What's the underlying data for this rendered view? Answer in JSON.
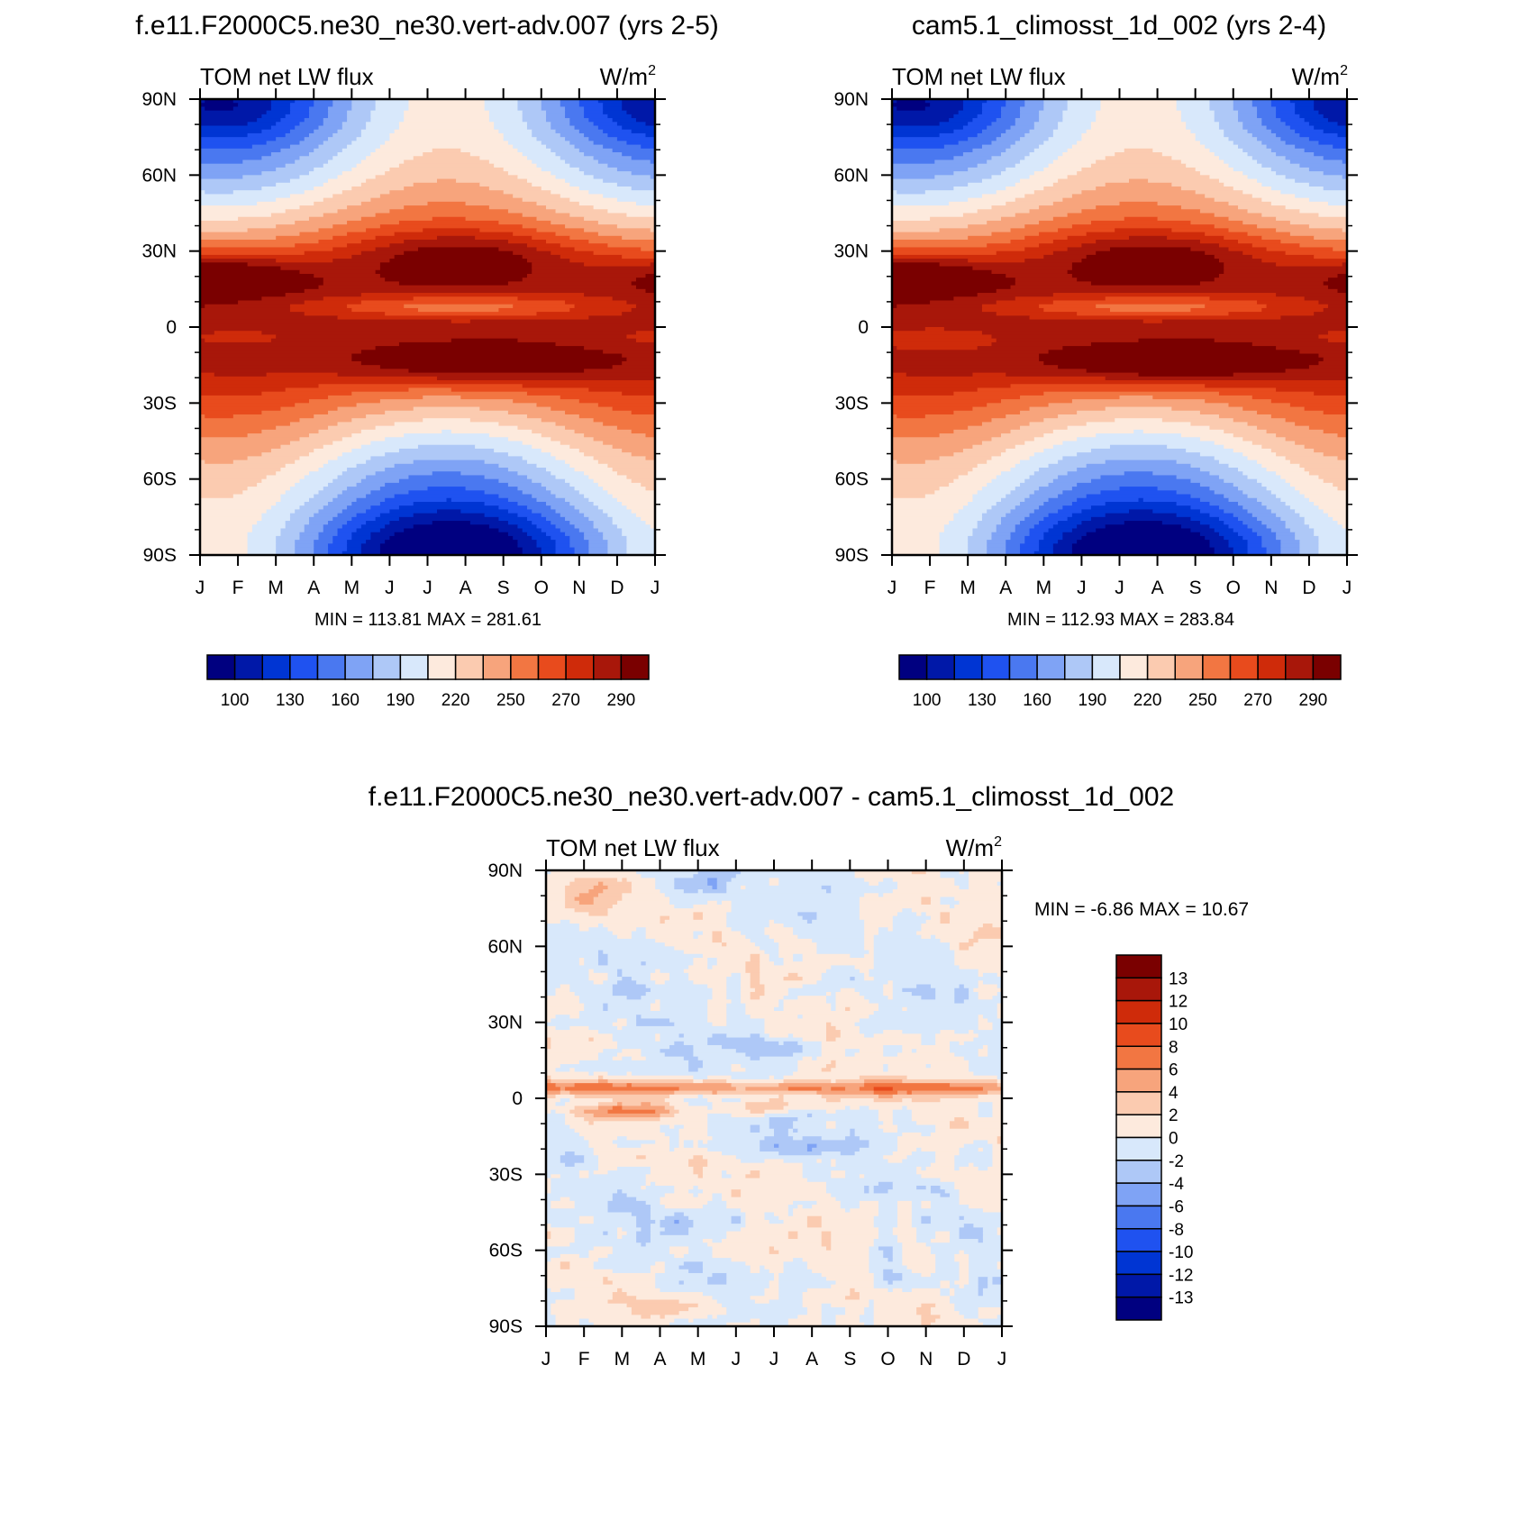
{
  "palette": {
    "absolute": [
      "#000080",
      "#0018a8",
      "#0035d3",
      "#1f52f0",
      "#4a78f0",
      "#7fa3f5",
      "#aec8f7",
      "#d8e8fb",
      "#fdeadd",
      "#fbcbb0",
      "#f7a47c",
      "#f27642",
      "#e84b1d",
      "#cf2b0a",
      "#a8170a",
      "#7a0000"
    ],
    "difference": [
      "#000080",
      "#0018a8",
      "#0035d3",
      "#1f52f0",
      "#4a78f0",
      "#7fa3f5",
      "#aec8f7",
      "#d8e8fb",
      "#fdeadd",
      "#fbcbb0",
      "#f7a47c",
      "#f27642",
      "#e84b1d",
      "#cf2b0a",
      "#a8170a",
      "#7a0000"
    ]
  },
  "chart_data": [
    {
      "type": "heatmap",
      "title": "f.e11.F2000C5.ne30_ne30.vert-adv.007 (yrs 2-5)",
      "left_label": "TOM net LW flux",
      "right_label": "W/m",
      "right_label_sup": "2",
      "x_tick_labels": [
        "J",
        "F",
        "M",
        "A",
        "M",
        "J",
        "J",
        "A",
        "S",
        "O",
        "N",
        "D",
        "J"
      ],
      "y_tick_labels": [
        "90N",
        "60N",
        "30N",
        "0",
        "30S",
        "60S",
        "90S"
      ],
      "y_ticks_deg": [
        90,
        60,
        30,
        0,
        -30,
        -60,
        -90
      ],
      "xlim_months": [
        0,
        12
      ],
      "ylim_deg": [
        -90,
        90
      ],
      "stats_text": "MIN = 113.81 MAX = 281.61",
      "colorbar": {
        "orientation": "horizontal",
        "levels": [
          100,
          110,
          120,
          130,
          140,
          150,
          160,
          170,
          180,
          190,
          200,
          210,
          220,
          230,
          240,
          250,
          260,
          270,
          280,
          290,
          300
        ],
        "labels": [
          "100",
          "130",
          "160",
          "190",
          "220",
          "250",
          "270",
          "290"
        ]
      }
    },
    {
      "type": "heatmap",
      "title": "cam5.1_climosst_1d_002 (yrs 2-4)",
      "left_label": "TOM net LW flux",
      "right_label": "W/m",
      "right_label_sup": "2",
      "x_tick_labels": [
        "J",
        "F",
        "M",
        "A",
        "M",
        "J",
        "J",
        "A",
        "S",
        "O",
        "N",
        "D",
        "J"
      ],
      "y_tick_labels": [
        "90N",
        "60N",
        "30N",
        "0",
        "30S",
        "60S",
        "90S"
      ],
      "y_ticks_deg": [
        90,
        60,
        30,
        0,
        -30,
        -60,
        -90
      ],
      "xlim_months": [
        0,
        12
      ],
      "ylim_deg": [
        -90,
        90
      ],
      "stats_text": "MIN = 112.93 MAX = 283.84",
      "colorbar": {
        "orientation": "horizontal",
        "labels": [
          "100",
          "130",
          "160",
          "190",
          "220",
          "250",
          "270",
          "290"
        ]
      }
    },
    {
      "type": "heatmap",
      "title": "f.e11.F2000C5.ne30_ne30.vert-adv.007 - cam5.1_climosst_1d_002",
      "left_label": "TOM net LW flux",
      "right_label": "W/m",
      "right_label_sup": "2",
      "x_tick_labels": [
        "J",
        "F",
        "M",
        "A",
        "M",
        "J",
        "J",
        "A",
        "S",
        "O",
        "N",
        "D",
        "J"
      ],
      "y_tick_labels": [
        "90N",
        "60N",
        "30N",
        "0",
        "30S",
        "60S",
        "90S"
      ],
      "y_ticks_deg": [
        90,
        60,
        30,
        0,
        -30,
        -60,
        -90
      ],
      "xlim_months": [
        0,
        12
      ],
      "ylim_deg": [
        -90,
        90
      ],
      "stats_text": "MIN =  -6.86 MAX =  10.67",
      "colorbar": {
        "orientation": "vertical",
        "levels": [
          -14,
          -13,
          -12,
          -10,
          -8,
          -6,
          -4,
          -2,
          0,
          2,
          4,
          6,
          8,
          10,
          12,
          13,
          14
        ],
        "labels": [
          "13",
          "12",
          "10",
          "8",
          "6",
          "4",
          "2",
          "0",
          "-2",
          "-4",
          "-6",
          "-8",
          "-10",
          "-12",
          "-13"
        ]
      }
    }
  ]
}
